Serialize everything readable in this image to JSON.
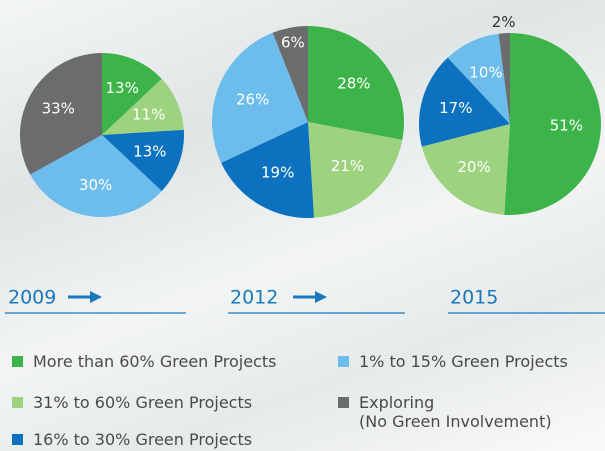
{
  "chart_data": {
    "type": "pie",
    "legend": [
      {
        "name": "More than 60% Green Projects",
        "color": "#3db449"
      },
      {
        "name": "31% to 60% Green Projects",
        "color": "#9dd27f"
      },
      {
        "name": "16% to 30% Green Projects",
        "color": "#0c72c0"
      },
      {
        "name": "1% to 15% Green Projects",
        "color": "#6cbcec"
      },
      {
        "name": "Exploring\n(No Green Involvement)",
        "color": "#6b6c6e"
      }
    ],
    "pies": [
      {
        "title": "2009",
        "values": [
          13,
          11,
          13,
          30,
          33
        ],
        "value_labels": [
          "13%",
          "11%",
          "13%",
          "30%",
          "33%"
        ]
      },
      {
        "title": "2012",
        "values": [
          28,
          21,
          19,
          26,
          6
        ],
        "value_labels": [
          "28%",
          "21%",
          "19%",
          "26%",
          "6%"
        ]
      },
      {
        "title": "2015",
        "values": [
          51,
          20,
          17,
          10,
          2
        ],
        "value_labels": [
          "51%",
          "20%",
          "17%",
          "10%",
          "2%"
        ]
      }
    ]
  }
}
